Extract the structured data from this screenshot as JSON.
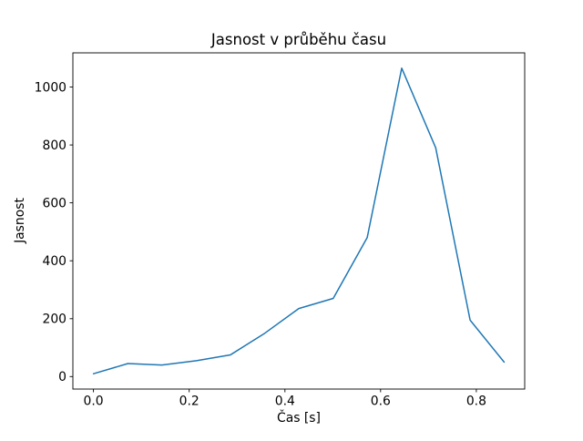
{
  "chart_data": {
    "type": "line",
    "title": "Jasnost v průběhu času",
    "xlabel": "Čas [s]",
    "ylabel": "Jasnost",
    "x": [
      0,
      0.072,
      0.143,
      0.215,
      0.286,
      0.358,
      0.429,
      0.501,
      0.572,
      0.644,
      0.715,
      0.787,
      0.858
    ],
    "y": [
      10,
      45,
      40,
      55,
      75,
      150,
      235,
      270,
      480,
      1065,
      790,
      195,
      50
    ],
    "xlim": [
      -0.043,
      0.901
    ],
    "ylim": [
      -43,
      1118
    ],
    "xticks": [
      0.0,
      0.2,
      0.4,
      0.6,
      0.8
    ],
    "xtick_labels": [
      "0.0",
      "0.2",
      "0.4",
      "0.6",
      "0.8"
    ],
    "yticks": [
      0,
      200,
      400,
      600,
      800,
      1000
    ],
    "ytick_labels": [
      "0",
      "200",
      "400",
      "600",
      "800",
      "1000"
    ],
    "line_color": "#1f77b4",
    "axes_color": "#000000",
    "background_color": "#ffffff",
    "grid": false,
    "legend_position": "none"
  }
}
